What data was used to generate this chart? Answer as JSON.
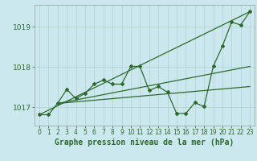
{
  "title": "Graphe pression niveau de la mer (hPa)",
  "bg_color": "#cce8ef",
  "grid_color": "#b0d0cc",
  "line_color": "#2d6a2d",
  "xlim": [
    -0.5,
    23.5
  ],
  "ylim": [
    1016.55,
    1019.55
  ],
  "yticks": [
    1017,
    1018,
    1019
  ],
  "xticks": [
    0,
    1,
    2,
    3,
    4,
    5,
    6,
    7,
    8,
    9,
    10,
    11,
    12,
    13,
    14,
    15,
    16,
    17,
    18,
    19,
    20,
    21,
    22,
    23
  ],
  "series": {
    "line_main": {
      "x": [
        0,
        1,
        2,
        3,
        4,
        5,
        6,
        7,
        8,
        9,
        10,
        11,
        12,
        13,
        14,
        15,
        16,
        17,
        18,
        19,
        20,
        21,
        22,
        23
      ],
      "y": [
        1016.82,
        1016.82,
        1017.1,
        1017.45,
        1017.22,
        1017.35,
        1017.58,
        1017.68,
        1017.58,
        1017.58,
        1018.02,
        1018.02,
        1017.42,
        1017.52,
        1017.38,
        1016.85,
        1016.85,
        1017.12,
        1017.02,
        1018.02,
        1018.52,
        1019.12,
        1019.05,
        1019.38
      ],
      "marker": "D",
      "markersize": 2.0,
      "linewidth": 0.9
    },
    "line_trend1": {
      "x": [
        0,
        23
      ],
      "y": [
        1016.82,
        1019.38
      ],
      "linewidth": 0.9
    },
    "line_trend2": {
      "x": [
        2,
        23
      ],
      "y": [
        1017.1,
        1018.02
      ],
      "linewidth": 0.9
    },
    "line_trend3": {
      "x": [
        2,
        23
      ],
      "y": [
        1017.1,
        1017.52
      ],
      "linewidth": 0.9
    }
  },
  "xlabel_fontsize": 7.0,
  "ytick_fontsize": 6.5,
  "xtick_fontsize": 5.5
}
